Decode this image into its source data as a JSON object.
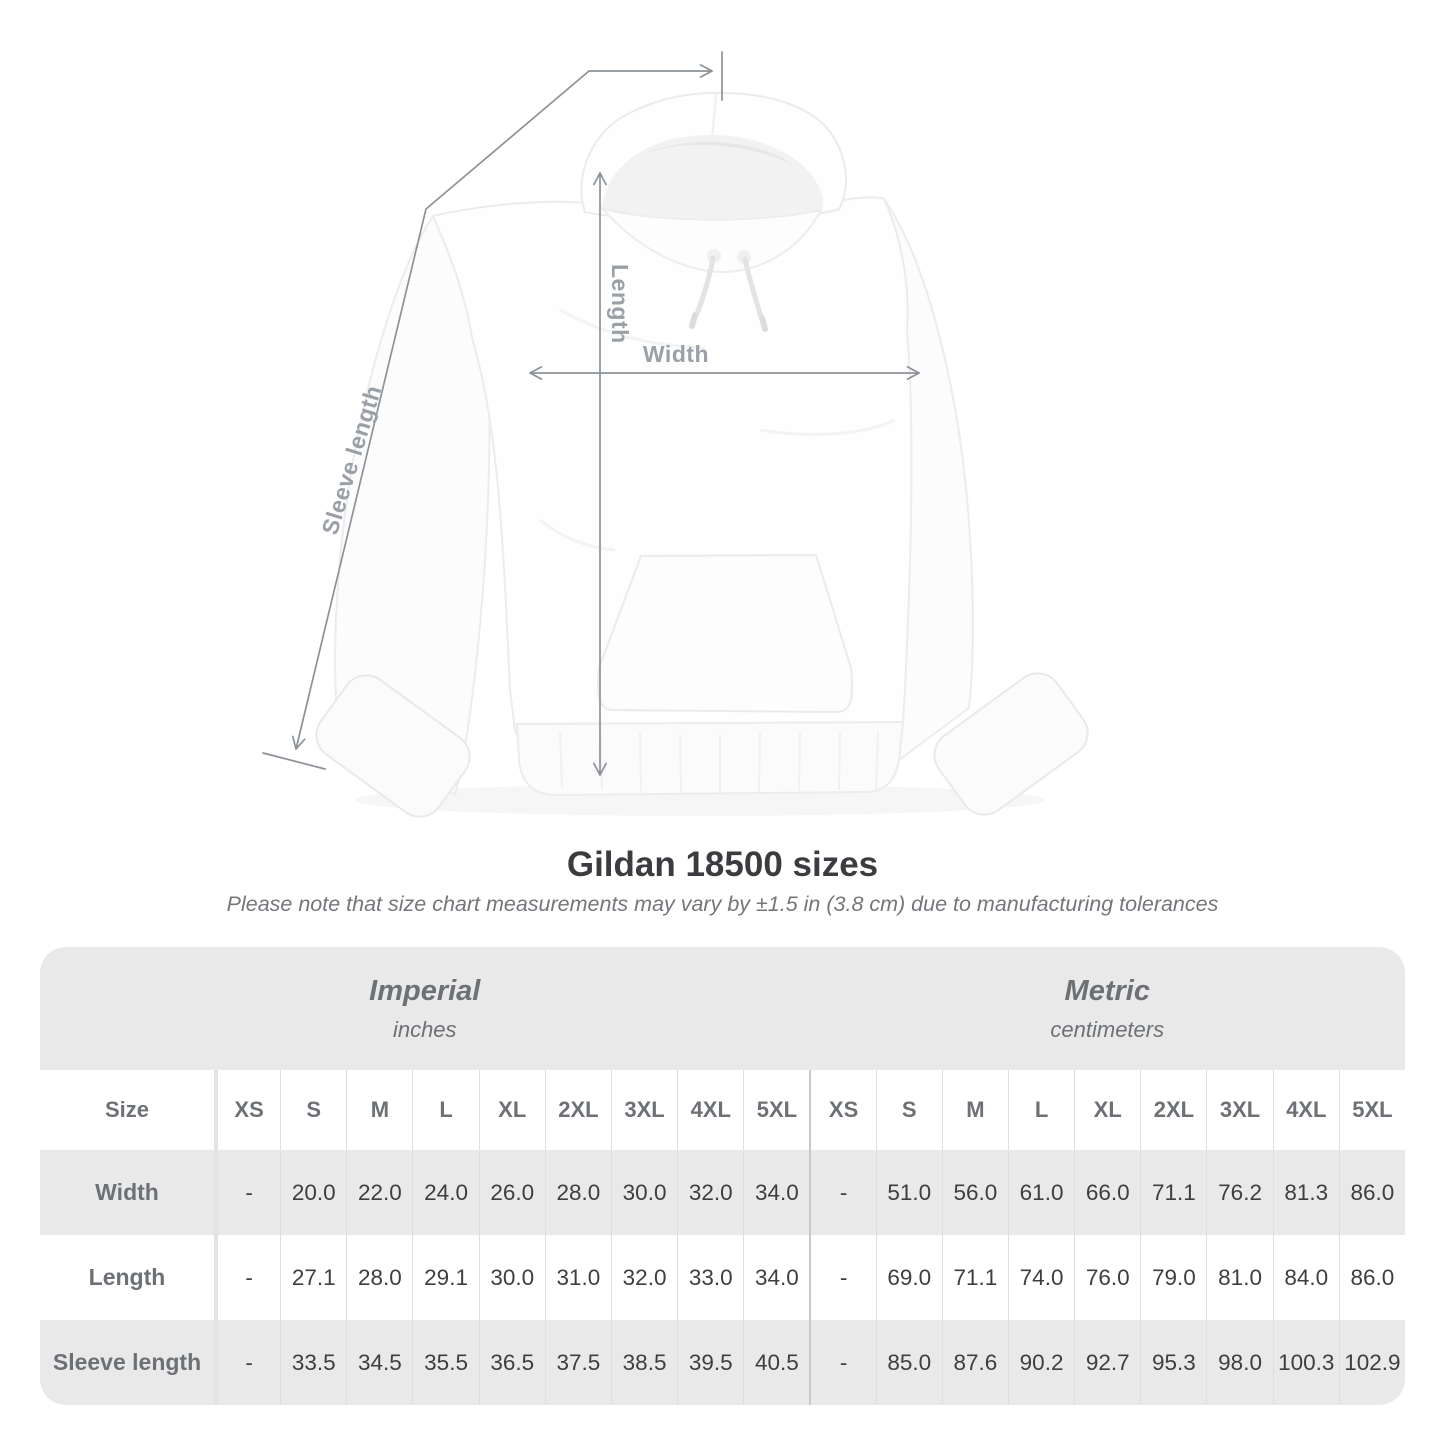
{
  "diagram": {
    "width_label": "Width",
    "length_label": "Length",
    "sleeve_label": "Sleeve length"
  },
  "title": "Gildan 18500 sizes",
  "subtitle": "Please note that size chart measurements may vary by ±1.5 in (3.8 cm) due to manufacturing tolerances",
  "table": {
    "size_label": "Size",
    "unit_groups": [
      {
        "label": "Imperial",
        "sublabel": "inches"
      },
      {
        "label": "Metric",
        "sublabel": "centimeters"
      }
    ],
    "sizes": [
      "XS",
      "S",
      "M",
      "L",
      "XL",
      "2XL",
      "3XL",
      "4XL",
      "5XL"
    ],
    "rows": [
      {
        "label": "Width",
        "imperial": [
          "-",
          "20.0",
          "22.0",
          "24.0",
          "26.0",
          "28.0",
          "30.0",
          "32.0",
          "34.0"
        ],
        "metric": [
          "-",
          "51.0",
          "56.0",
          "61.0",
          "66.0",
          "71.1",
          "76.2",
          "81.3",
          "86.0"
        ]
      },
      {
        "label": "Length",
        "imperial": [
          "-",
          "27.1",
          "28.0",
          "29.1",
          "30.0",
          "31.0",
          "32.0",
          "33.0",
          "34.0"
        ],
        "metric": [
          "-",
          "69.0",
          "71.1",
          "74.0",
          "76.0",
          "79.0",
          "81.0",
          "84.0",
          "86.0"
        ]
      },
      {
        "label": "Sleeve length",
        "imperial": [
          "-",
          "33.5",
          "34.5",
          "35.5",
          "36.5",
          "37.5",
          "38.5",
          "39.5",
          "40.5"
        ],
        "metric": [
          "-",
          "85.0",
          "87.6",
          "90.2",
          "92.7",
          "95.3",
          "98.0",
          "100.3",
          "102.9"
        ]
      }
    ]
  },
  "colors": {
    "measure": "#8d9298",
    "measure-label": "#9aa0a6",
    "title": "#3a3c3f",
    "note": "#73767a",
    "table-bg": "#e9e9e9",
    "head-text": "#6d7176",
    "value-text": "#3c3f42"
  }
}
